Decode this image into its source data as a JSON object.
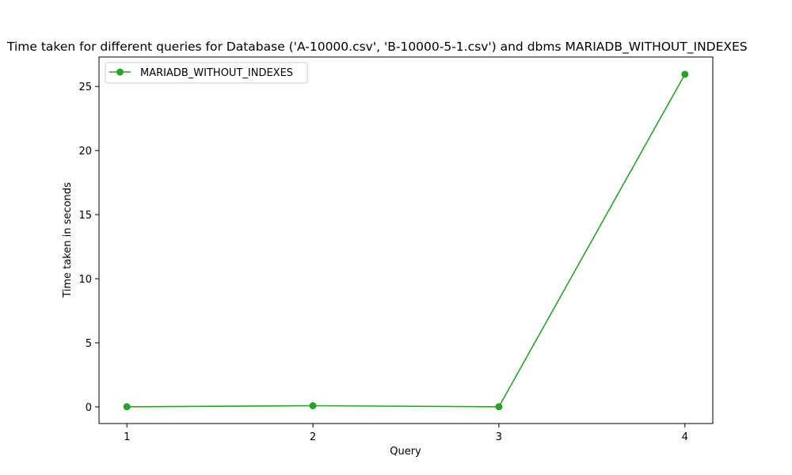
{
  "chart_data": {
    "type": "line",
    "title": "Time taken for different queries for Database ('A-10000.csv', 'B-10000-5-1.csv') and dbms MARIADB_WITHOUT_INDEXES",
    "xlabel": "Query",
    "ylabel": "Time taken in seconds",
    "x": [
      1,
      2,
      3,
      4
    ],
    "x_ticks": [
      "1",
      "2",
      "3",
      "4"
    ],
    "y_ticks": [
      "0",
      "5",
      "10",
      "15",
      "20",
      "25"
    ],
    "xlim": [
      0.85,
      4.15
    ],
    "ylim": [
      -1.3,
      27.3
    ],
    "grid": false,
    "legend_position": "upper-left",
    "series": [
      {
        "name": "MARIADB_WITHOUT_INDEXES",
        "values": [
          0.01,
          0.09,
          0.01,
          25.95
        ],
        "color": "#2ca02c",
        "marker": "circle"
      }
    ]
  }
}
